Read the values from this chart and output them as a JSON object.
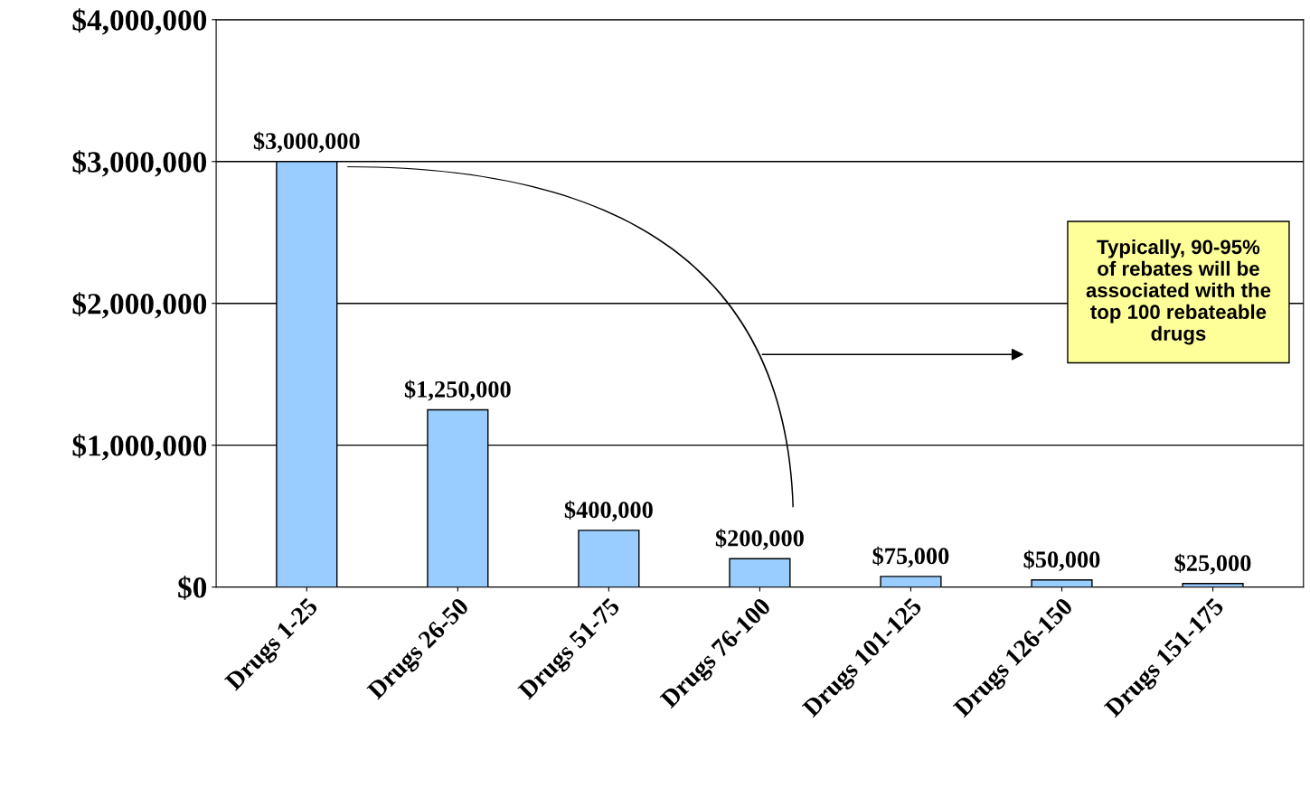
{
  "chart_data": {
    "type": "bar",
    "categories": [
      "Drugs 1-25",
      "Drugs 26-50",
      "Drugs 51-75",
      "Drugs 76-100",
      "Drugs 101-125",
      "Drugs 126-150",
      "Drugs 151-175"
    ],
    "values": [
      3000000,
      1250000,
      400000,
      200000,
      75000,
      50000,
      25000
    ],
    "value_labels": [
      "$3,000,000",
      "$1,250,000",
      "$400,000",
      "$200,000",
      "$75,000",
      "$50,000",
      "$25,000"
    ],
    "color": "#99ccff",
    "ylim": [
      0,
      4000000
    ],
    "yticks": [
      {
        "value": 0,
        "label": "$0"
      },
      {
        "value": 1000000,
        "label": "$1,000,000"
      },
      {
        "value": 2000000,
        "label": "$2,000,000"
      },
      {
        "value": 3000000,
        "label": "$3,000,000"
      },
      {
        "value": 4000000,
        "label": "$4,000,000"
      }
    ],
    "grid": "y",
    "annotations": [
      "Typically, 90-95%\nof rebates will be\nassociated with the\ntop 100 rebateable\ndrugs"
    ]
  }
}
